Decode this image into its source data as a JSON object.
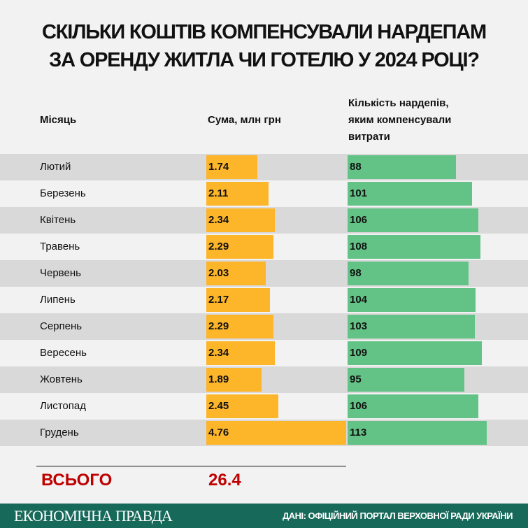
{
  "title": {
    "line1": "СКІЛЬКИ КОШТІВ КОМПЕНСУВАЛИ НАРДЕПАМ",
    "line2": "ЗА ОРЕНДУ ЖИТЛА ЧИ ГОТЕЛЮ У 2024 РОЦІ?"
  },
  "headers": {
    "month": "Місяць",
    "sum": "Сума, млн грн",
    "count_l1": "Кількість нардепів,",
    "count_l2": "яким компенсували",
    "count_l3": "витрати"
  },
  "chart_data": {
    "type": "bar",
    "title": "СКІЛЬКИ КОШТІВ КОМПЕНСУВАЛИ НАРДЕПАМ ЗА ОРЕНДУ ЖИТЛА ЧИ ГОТЕЛЮ У 2024 РОЦІ?",
    "categories": [
      "Лютий",
      "Березень",
      "Квітень",
      "Травень",
      "Червень",
      "Липень",
      "Серпень",
      "Вересень",
      "Жовтень",
      "Листопад",
      "Грудень"
    ],
    "series": [
      {
        "name": "Сума, млн грн",
        "color": "#fdb52a",
        "values": [
          "1.74",
          "2.11",
          "2.34",
          "2.29",
          "2.03",
          "2.17",
          "2.29",
          "2.34",
          "1.89",
          "2.45",
          "4.76"
        ]
      },
      {
        "name": "Кількість нардепів, яким компенсували витрати",
        "color": "#63c386",
        "values": [
          "88",
          "101",
          "106",
          "108",
          "98",
          "104",
          "103",
          "109",
          "95",
          "106",
          "113"
        ]
      }
    ]
  },
  "total": {
    "label": "ВСЬОГО",
    "value": "26.4",
    "color": "#c00000"
  },
  "footer": {
    "logo": "ЕКОНОМІЧНА ПРАВДА",
    "source": "ДАНІ: ОФІЦІЙНИЙ ПОРТАЛ ВЕРХОВНОЇ РАДИ УКРАЇНИ"
  }
}
